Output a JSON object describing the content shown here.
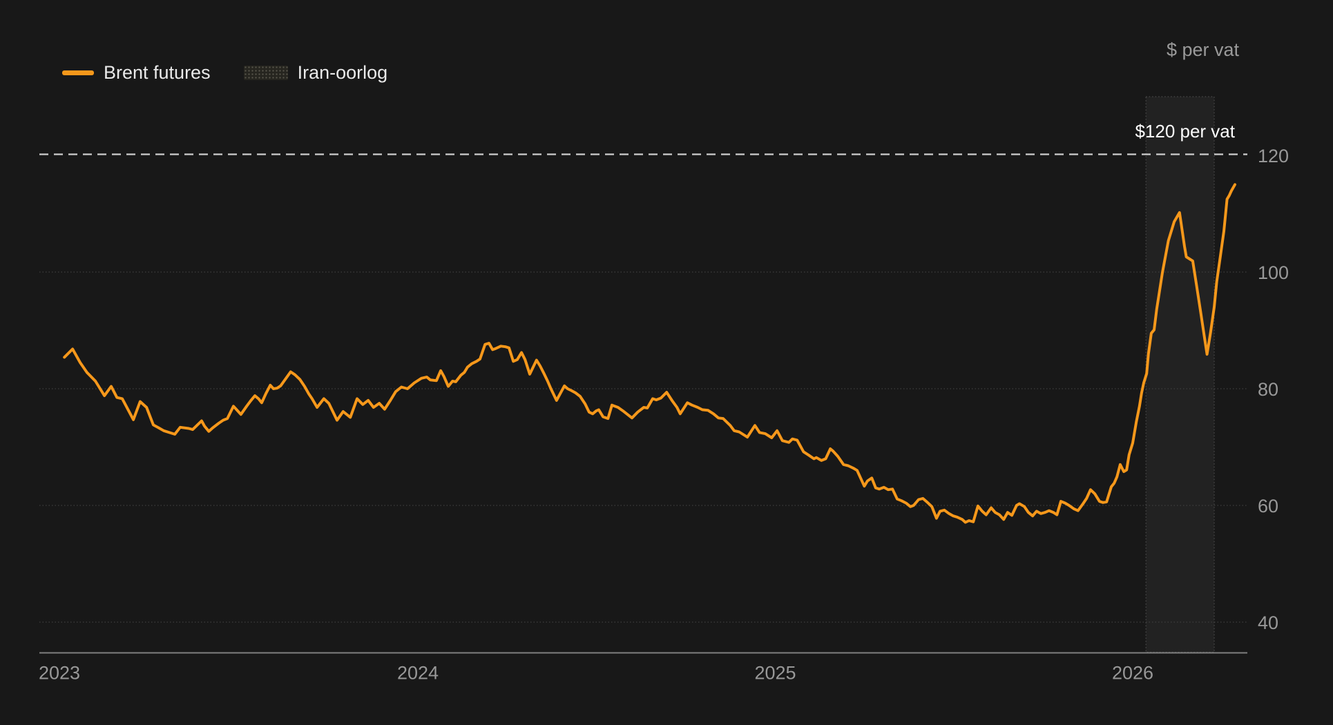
{
  "header": {
    "unit_label": "$ per vat"
  },
  "legend": {
    "items": [
      {
        "label": "Brent futures",
        "type": "line"
      },
      {
        "label": "Iran-oorlog",
        "type": "band"
      }
    ]
  },
  "colors": {
    "background": "#181818",
    "series_line": "#F6981B",
    "band_fill": "rgba(255,255,255,0.048)",
    "band_border": "#565656",
    "gridline": "#3f3f3f",
    "reference_line": "#cfcfcf",
    "axis_line": "#808080",
    "tick_label": "#989898",
    "legend_text": "#e9e9e9",
    "annotation_text": "#ffffff"
  },
  "chart_data": {
    "type": "line",
    "title": "",
    "xlabel": "",
    "ylabel": "$ per vat",
    "x_ticks": [
      2023,
      2024,
      2025,
      2026
    ],
    "x_tick_labels": [
      "2023",
      "2024",
      "2025",
      "2026"
    ],
    "y_ticks": [
      40,
      60,
      80,
      100,
      120
    ],
    "y_tick_labels": [
      "40",
      "60",
      "80",
      "100",
      "120"
    ],
    "xlim": [
      2022.94,
      2026.35
    ],
    "ylim": [
      34.8,
      146.6
    ],
    "grid": true,
    "legend_position": "top-left",
    "reference_line": {
      "value": 120,
      "label": "$120 per vat"
    },
    "band": {
      "label": "Iran-oorlog",
      "x_from": 2026.037,
      "x_to": 2026.228
    },
    "series": [
      {
        "name": "Brent futures",
        "color": "#F6981B",
        "points": [
          [
            2023.011,
            85.4
          ],
          [
            2023.034,
            86.8
          ],
          [
            2023.055,
            84.5
          ],
          [
            2023.074,
            82.8
          ],
          [
            2023.098,
            81.3
          ],
          [
            2023.123,
            78.8
          ],
          [
            2023.142,
            80.4
          ],
          [
            2023.158,
            78.5
          ],
          [
            2023.173,
            78.3
          ],
          [
            2023.204,
            74.7
          ],
          [
            2023.223,
            77.8
          ],
          [
            2023.241,
            76.8
          ],
          [
            2023.26,
            73.8
          ],
          [
            2023.275,
            73.3
          ],
          [
            2023.289,
            72.8
          ],
          [
            2023.32,
            72.2
          ],
          [
            2023.335,
            73.4
          ],
          [
            2023.359,
            73.2
          ],
          [
            2023.37,
            73.0
          ],
          [
            2023.395,
            74.5
          ],
          [
            2023.403,
            73.6
          ],
          [
            2023.415,
            72.7
          ],
          [
            2023.426,
            73.3
          ],
          [
            2023.443,
            74.1
          ],
          [
            2023.455,
            74.6
          ],
          [
            2023.467,
            74.9
          ],
          [
            2023.484,
            77.0
          ],
          [
            2023.496,
            76.2
          ],
          [
            2023.505,
            75.6
          ],
          [
            2023.521,
            77.0
          ],
          [
            2023.532,
            77.9
          ],
          [
            2023.544,
            78.8
          ],
          [
            2023.554,
            78.3
          ],
          [
            2023.563,
            77.6
          ],
          [
            2023.575,
            79.2
          ],
          [
            2023.587,
            80.6
          ],
          [
            2023.596,
            80.0
          ],
          [
            2023.606,
            80.1
          ],
          [
            2023.616,
            80.5
          ],
          [
            2023.644,
            82.9
          ],
          [
            2023.656,
            82.4
          ],
          [
            2023.67,
            81.6
          ],
          [
            2023.683,
            80.4
          ],
          [
            2023.695,
            79.1
          ],
          [
            2023.704,
            78.3
          ],
          [
            2023.718,
            76.8
          ],
          [
            2023.737,
            78.3
          ],
          [
            2023.751,
            77.5
          ],
          [
            2023.774,
            74.6
          ],
          [
            2023.791,
            76.1
          ],
          [
            2023.811,
            75.1
          ],
          [
            2023.83,
            78.3
          ],
          [
            2023.846,
            77.3
          ],
          [
            2023.861,
            78.0
          ],
          [
            2023.876,
            76.8
          ],
          [
            2023.892,
            77.5
          ],
          [
            2023.907,
            76.5
          ],
          [
            2023.923,
            78.0
          ],
          [
            2023.938,
            79.5
          ],
          [
            2023.954,
            80.3
          ],
          [
            2023.971,
            80.0
          ],
          [
            2023.99,
            81.0
          ],
          [
            2024.01,
            81.8
          ],
          [
            2024.025,
            82.0
          ],
          [
            2024.035,
            81.5
          ],
          [
            2024.052,
            81.4
          ],
          [
            2024.064,
            83.1
          ],
          [
            2024.073,
            82.1
          ],
          [
            2024.085,
            80.4
          ],
          [
            2024.097,
            81.3
          ],
          [
            2024.106,
            81.2
          ],
          [
            2024.12,
            82.3
          ],
          [
            2024.13,
            82.8
          ],
          [
            2024.139,
            83.7
          ],
          [
            2024.151,
            84.3
          ],
          [
            2024.164,
            84.7
          ],
          [
            2024.174,
            85.1
          ],
          [
            2024.188,
            87.6
          ],
          [
            2024.199,
            87.8
          ],
          [
            2024.209,
            86.7
          ],
          [
            2024.218,
            86.9
          ],
          [
            2024.232,
            87.3
          ],
          [
            2024.245,
            87.2
          ],
          [
            2024.255,
            87.0
          ],
          [
            2024.267,
            84.7
          ],
          [
            2024.278,
            85.0
          ],
          [
            2024.29,
            86.2
          ],
          [
            2024.3,
            85.0
          ],
          [
            2024.313,
            82.5
          ],
          [
            2024.332,
            84.9
          ],
          [
            2024.342,
            83.9
          ],
          [
            2024.352,
            82.7
          ],
          [
            2024.363,
            81.3
          ],
          [
            2024.373,
            79.9
          ],
          [
            2024.388,
            78.0
          ],
          [
            2024.41,
            80.5
          ],
          [
            2024.419,
            80.0
          ],
          [
            2024.429,
            79.7
          ],
          [
            2024.441,
            79.3
          ],
          [
            2024.454,
            78.7
          ],
          [
            2024.468,
            77.4
          ],
          [
            2024.479,
            76.0
          ],
          [
            2024.489,
            75.7
          ],
          [
            2024.499,
            76.2
          ],
          [
            2024.506,
            76.4
          ],
          [
            2024.518,
            75.2
          ],
          [
            2024.532,
            74.9
          ],
          [
            2024.543,
            77.2
          ],
          [
            2024.56,
            76.8
          ],
          [
            2024.574,
            76.2
          ],
          [
            2024.599,
            75.0
          ],
          [
            2024.615,
            76.0
          ],
          [
            2024.632,
            76.8
          ],
          [
            2024.642,
            76.7
          ],
          [
            2024.657,
            78.3
          ],
          [
            2024.667,
            78.1
          ],
          [
            2024.68,
            78.4
          ],
          [
            2024.696,
            79.4
          ],
          [
            2024.711,
            78.0
          ],
          [
            2024.725,
            76.8
          ],
          [
            2024.734,
            75.7
          ],
          [
            2024.754,
            77.6
          ],
          [
            2024.767,
            77.2
          ],
          [
            2024.783,
            76.8
          ],
          [
            2024.796,
            76.4
          ],
          [
            2024.812,
            76.3
          ],
          [
            2024.827,
            75.7
          ],
          [
            2024.841,
            75.0
          ],
          [
            2024.854,
            74.9
          ],
          [
            2024.874,
            73.7
          ],
          [
            2024.885,
            72.8
          ],
          [
            2024.899,
            72.6
          ],
          [
            2024.922,
            71.7
          ],
          [
            2024.943,
            73.7
          ],
          [
            2024.956,
            72.5
          ],
          [
            2024.972,
            72.3
          ],
          [
            2024.99,
            71.6
          ],
          [
            2025.005,
            72.8
          ],
          [
            2025.02,
            71.1
          ],
          [
            2025.038,
            70.8
          ],
          [
            2025.048,
            71.4
          ],
          [
            2025.061,
            71.2
          ],
          [
            2025.079,
            69.2
          ],
          [
            2025.094,
            68.6
          ],
          [
            2025.108,
            68.0
          ],
          [
            2025.115,
            68.2
          ],
          [
            2025.129,
            67.7
          ],
          [
            2025.141,
            68.0
          ],
          [
            2025.154,
            69.7
          ],
          [
            2025.162,
            69.3
          ],
          [
            2025.175,
            68.4
          ],
          [
            2025.191,
            67.0
          ],
          [
            2025.204,
            66.8
          ],
          [
            2025.218,
            66.4
          ],
          [
            2025.229,
            66.0
          ],
          [
            2025.249,
            63.3
          ],
          [
            2025.258,
            64.2
          ],
          [
            2025.27,
            64.7
          ],
          [
            2025.281,
            63.0
          ],
          [
            2025.291,
            62.8
          ],
          [
            2025.304,
            63.1
          ],
          [
            2025.316,
            62.7
          ],
          [
            2025.328,
            62.8
          ],
          [
            2025.341,
            61.1
          ],
          [
            2025.353,
            60.8
          ],
          [
            2025.366,
            60.4
          ],
          [
            2025.378,
            59.8
          ],
          [
            2025.387,
            60.0
          ],
          [
            2025.401,
            61.0
          ],
          [
            2025.413,
            61.2
          ],
          [
            2025.426,
            60.5
          ],
          [
            2025.438,
            59.8
          ],
          [
            2025.451,
            57.8
          ],
          [
            2025.461,
            59.0
          ],
          [
            2025.473,
            59.2
          ],
          [
            2025.486,
            58.6
          ],
          [
            2025.498,
            58.2
          ],
          [
            2025.509,
            58.0
          ],
          [
            2025.523,
            57.6
          ],
          [
            2025.532,
            57.1
          ],
          [
            2025.542,
            57.4
          ],
          [
            2025.554,
            57.2
          ],
          [
            2025.567,
            59.9
          ],
          [
            2025.579,
            59.0
          ],
          [
            2025.59,
            58.4
          ],
          [
            2025.604,
            59.6
          ],
          [
            2025.615,
            58.8
          ],
          [
            2025.627,
            58.4
          ],
          [
            2025.639,
            57.6
          ],
          [
            2025.65,
            58.8
          ],
          [
            2025.662,
            58.3
          ],
          [
            2025.675,
            60.0
          ],
          [
            2025.683,
            60.3
          ],
          [
            2025.697,
            59.8
          ],
          [
            2025.708,
            58.8
          ],
          [
            2025.72,
            58.2
          ],
          [
            2025.731,
            59.0
          ],
          [
            2025.743,
            58.6
          ],
          [
            2025.755,
            58.8
          ],
          [
            2025.766,
            59.1
          ],
          [
            2025.778,
            58.8
          ],
          [
            2025.788,
            58.4
          ],
          [
            2025.799,
            60.7
          ],
          [
            2025.811,
            60.4
          ],
          [
            2025.822,
            60.0
          ],
          [
            2025.836,
            59.4
          ],
          [
            2025.847,
            59.1
          ],
          [
            2025.861,
            60.3
          ],
          [
            2025.871,
            61.2
          ],
          [
            2025.882,
            62.7
          ],
          [
            2025.894,
            62.0
          ],
          [
            2025.907,
            60.7
          ],
          [
            2025.917,
            60.5
          ],
          [
            2025.927,
            60.6
          ],
          [
            2025.94,
            63.2
          ],
          [
            2025.948,
            63.8
          ],
          [
            2025.956,
            64.9
          ],
          [
            2025.965,
            67.0
          ],
          [
            2025.975,
            65.8
          ],
          [
            2025.983,
            66.1
          ],
          [
            2025.99,
            68.7
          ],
          [
            2026.0,
            70.7
          ],
          [
            2026.01,
            74.3
          ],
          [
            2026.019,
            77.0
          ],
          [
            2026.025,
            79.3
          ],
          [
            2026.031,
            81.0
          ],
          [
            2026.039,
            82.6
          ],
          [
            2026.044,
            86.0
          ],
          [
            2026.052,
            89.5
          ],
          [
            2026.06,
            90.1
          ],
          [
            2026.067,
            93.6
          ],
          [
            2026.083,
            99.9
          ],
          [
            2026.1,
            105.4
          ],
          [
            2026.116,
            108.6
          ],
          [
            2026.131,
            110.2
          ],
          [
            2026.145,
            104.4
          ],
          [
            2026.15,
            102.6
          ],
          [
            2026.168,
            101.9
          ],
          [
            2026.179,
            97.6
          ],
          [
            2026.189,
            93.6
          ],
          [
            2026.199,
            89.5
          ],
          [
            2026.208,
            85.9
          ],
          [
            2026.218,
            89.7
          ],
          [
            2026.228,
            94.0
          ],
          [
            2026.235,
            98.3
          ],
          [
            2026.245,
            102.6
          ],
          [
            2026.255,
            107.0
          ],
          [
            2026.264,
            112.5
          ],
          [
            2026.27,
            113.1
          ],
          [
            2026.276,
            113.9
          ],
          [
            2026.286,
            115.0
          ]
        ]
      }
    ]
  }
}
